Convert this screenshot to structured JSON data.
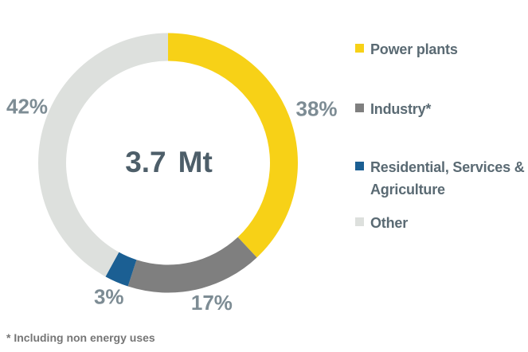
{
  "chart_data": {
    "type": "pie",
    "variant": "donut",
    "title": "",
    "center_label": {
      "value": "3.7",
      "unit": "Mt"
    },
    "start_angle_deg": -90,
    "direction": "clockwise",
    "legend_position": "right",
    "slices": [
      {
        "id": "power-plants",
        "label": "Power plants",
        "value": 38,
        "pct_label": "38%",
        "color": "#f7d117"
      },
      {
        "id": "industry",
        "label": "Industry*",
        "value": 17,
        "pct_label": "17%",
        "color": "#7f7f7f"
      },
      {
        "id": "residential-services-agriculture",
        "label": "Residential, Services & Agriculture",
        "value": 3,
        "pct_label": "3%",
        "color": "#1b5f93"
      },
      {
        "id": "other",
        "label": "Other",
        "value": 42,
        "pct_label": "42%",
        "color": "#dde0dd"
      }
    ]
  },
  "footnote": "* Including non energy uses",
  "colors": {
    "background": "#ffffff",
    "center_text": "#4d5e69",
    "percent_label_text": "#7d8c94",
    "legend_text": "#5a6a73",
    "footnote_text": "#767676"
  }
}
